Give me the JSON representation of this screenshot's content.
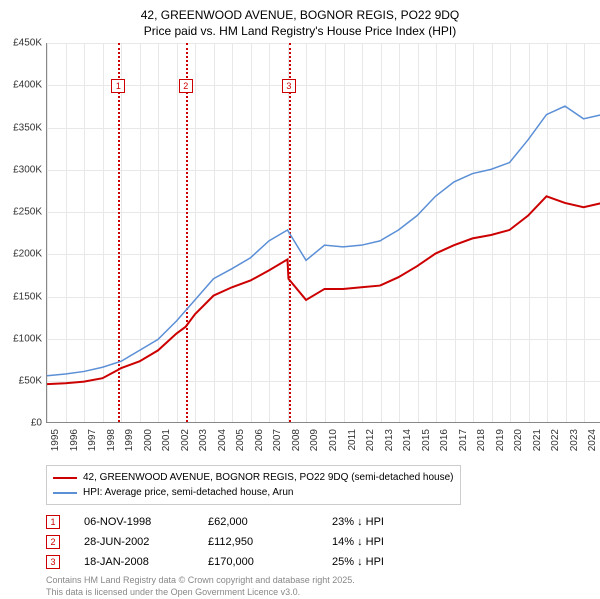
{
  "title_line1": "42, GREENWOOD AVENUE, BOGNOR REGIS, PO22 9DQ",
  "title_line2": "Price paid vs. HM Land Registry's House Price Index (HPI)",
  "chart": {
    "type": "line",
    "background_color": "#ffffff",
    "grid_color": "#e8e8e8",
    "ylim": [
      0,
      450000
    ],
    "ytick_step": 50000,
    "ytick_labels": [
      "£0",
      "£50K",
      "£100K",
      "£150K",
      "£200K",
      "£250K",
      "£300K",
      "£350K",
      "£400K",
      "£450K"
    ],
    "xlim": [
      1995,
      2025
    ],
    "xticks": [
      1995,
      1996,
      1997,
      1998,
      1999,
      2000,
      2001,
      2002,
      2003,
      2004,
      2005,
      2006,
      2007,
      2008,
      2009,
      2010,
      2011,
      2012,
      2013,
      2014,
      2015,
      2016,
      2017,
      2018,
      2019,
      2020,
      2021,
      2022,
      2023,
      2024
    ],
    "label_fontsize": 10,
    "series": [
      {
        "name": "price_paid",
        "color": "#cc0000",
        "width": 2,
        "points": [
          [
            1995,
            45000
          ],
          [
            1996,
            46000
          ],
          [
            1997,
            48000
          ],
          [
            1998,
            52000
          ],
          [
            1998.85,
            62000
          ],
          [
            1999,
            64000
          ],
          [
            2000,
            72000
          ],
          [
            2001,
            85000
          ],
          [
            2002,
            105000
          ],
          [
            2002.49,
            112950
          ],
          [
            2003,
            128000
          ],
          [
            2004,
            150000
          ],
          [
            2005,
            160000
          ],
          [
            2006,
            168000
          ],
          [
            2007,
            180000
          ],
          [
            2008,
            193000
          ],
          [
            2008.05,
            170000
          ],
          [
            2009,
            145000
          ],
          [
            2010,
            158000
          ],
          [
            2011,
            158000
          ],
          [
            2012,
            160000
          ],
          [
            2013,
            162000
          ],
          [
            2014,
            172000
          ],
          [
            2015,
            185000
          ],
          [
            2016,
            200000
          ],
          [
            2017,
            210000
          ],
          [
            2018,
            218000
          ],
          [
            2019,
            222000
          ],
          [
            2020,
            228000
          ],
          [
            2021,
            245000
          ],
          [
            2022,
            268000
          ],
          [
            2023,
            260000
          ],
          [
            2024,
            255000
          ],
          [
            2025,
            260000
          ]
        ]
      },
      {
        "name": "hpi",
        "color": "#5b8fd6",
        "width": 1.5,
        "points": [
          [
            1995,
            55000
          ],
          [
            1996,
            57000
          ],
          [
            1997,
            60000
          ],
          [
            1998,
            65000
          ],
          [
            1999,
            72000
          ],
          [
            2000,
            85000
          ],
          [
            2001,
            98000
          ],
          [
            2002,
            120000
          ],
          [
            2003,
            145000
          ],
          [
            2004,
            170000
          ],
          [
            2005,
            182000
          ],
          [
            2006,
            195000
          ],
          [
            2007,
            215000
          ],
          [
            2008,
            228000
          ],
          [
            2009,
            192000
          ],
          [
            2010,
            210000
          ],
          [
            2011,
            208000
          ],
          [
            2012,
            210000
          ],
          [
            2013,
            215000
          ],
          [
            2014,
            228000
          ],
          [
            2015,
            245000
          ],
          [
            2016,
            268000
          ],
          [
            2017,
            285000
          ],
          [
            2018,
            295000
          ],
          [
            2019,
            300000
          ],
          [
            2020,
            308000
          ],
          [
            2021,
            335000
          ],
          [
            2022,
            365000
          ],
          [
            2023,
            375000
          ],
          [
            2024,
            360000
          ],
          [
            2025,
            365000
          ]
        ]
      }
    ],
    "markers": [
      {
        "num": "1",
        "year": 1998.85,
        "color": "#cc0000"
      },
      {
        "num": "2",
        "year": 2002.49,
        "color": "#cc0000"
      },
      {
        "num": "3",
        "year": 2008.05,
        "color": "#cc0000"
      }
    ]
  },
  "legend": {
    "items": [
      {
        "color": "#cc0000",
        "label": "42, GREENWOOD AVENUE, BOGNOR REGIS, PO22 9DQ (semi-detached house)"
      },
      {
        "color": "#5b8fd6",
        "label": "HPI: Average price, semi-detached house, Arun"
      }
    ]
  },
  "sales": [
    {
      "num": "1",
      "color": "#cc0000",
      "date": "06-NOV-1998",
      "price": "£62,000",
      "hpi": "23% ↓ HPI"
    },
    {
      "num": "2",
      "color": "#cc0000",
      "date": "28-JUN-2002",
      "price": "£112,950",
      "hpi": "14% ↓ HPI"
    },
    {
      "num": "3",
      "color": "#cc0000",
      "date": "18-JAN-2008",
      "price": "£170,000",
      "hpi": "25% ↓ HPI"
    }
  ],
  "footer_line1": "Contains HM Land Registry data © Crown copyright and database right 2025.",
  "footer_line2": "This data is licensed under the Open Government Licence v3.0."
}
